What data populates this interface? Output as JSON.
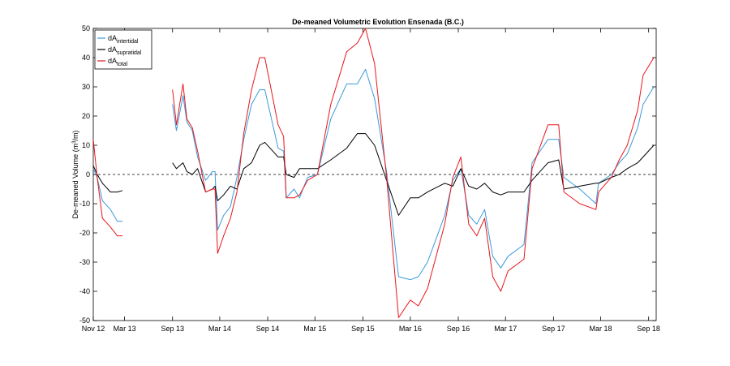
{
  "chart_data": {
    "type": "line",
    "title": "De-meaned Volumetric Evolution Ensenada (B.C.)",
    "xlabel": "",
    "ylabel": "De-meaned Volume (m^3/m)",
    "xlim": [
      "2012-11-01",
      "2018-09-30"
    ],
    "ylim": [
      -50,
      50
    ],
    "yticks": [
      -50,
      -40,
      -30,
      -20,
      -10,
      0,
      10,
      20,
      30,
      40,
      50
    ],
    "xticks": [
      {
        "label": "Nov 12",
        "date": "2012-11-01"
      },
      {
        "label": "Mar 13",
        "date": "2013-03-01"
      },
      {
        "label": "Sep 13",
        "date": "2013-09-01"
      },
      {
        "label": "Mar 14",
        "date": "2014-03-01"
      },
      {
        "label": "Sep 14",
        "date": "2014-09-01"
      },
      {
        "label": "Mar 15",
        "date": "2015-03-01"
      },
      {
        "label": "Sep 15",
        "date": "2015-09-01"
      },
      {
        "label": "Mar 16",
        "date": "2016-03-01"
      },
      {
        "label": "Sep 16",
        "date": "2016-09-01"
      },
      {
        "label": "Mar 17",
        "date": "2017-03-01"
      },
      {
        "label": "Sep 17",
        "date": "2017-09-01"
      },
      {
        "label": "Mar 18",
        "date": "2018-03-01"
      },
      {
        "label": "Sep 18",
        "date": "2018-09-01"
      }
    ],
    "zero_line": {
      "y": 0,
      "style": "dashed"
    },
    "legend": {
      "position": "top-left"
    },
    "grid": false,
    "series": [
      {
        "name": "dA",
        "name_subscript": "intertidal",
        "color": "#3A9AD9",
        "segments": [
          [
            [
              "2012-11-01",
              2
            ],
            [
              "2012-11-16",
              -1
            ],
            [
              "2012-12-06",
              -9
            ],
            [
              "2013-01-06",
              -12
            ],
            [
              "2013-02-01",
              -16
            ],
            [
              "2013-02-21",
              -16
            ]
          ],
          [
            [
              "2013-09-01",
              24
            ],
            [
              "2013-09-16",
              15
            ],
            [
              "2013-10-11",
              27
            ],
            [
              "2013-10-26",
              18
            ],
            [
              "2013-11-16",
              15
            ],
            [
              "2013-12-06",
              6
            ],
            [
              "2014-01-06",
              -2
            ],
            [
              "2014-02-01",
              1
            ],
            [
              "2014-02-11",
              1
            ],
            [
              "2014-02-21",
              -19
            ],
            [
              "2014-03-16",
              -14
            ],
            [
              "2014-04-11",
              -11
            ],
            [
              "2014-05-06",
              -1
            ],
            [
              "2014-06-01",
              12
            ],
            [
              "2014-07-01",
              24
            ],
            [
              "2014-08-01",
              29
            ],
            [
              "2014-08-21",
              29
            ],
            [
              "2014-10-11",
              9
            ],
            [
              "2014-11-01",
              8
            ],
            [
              "2014-11-11",
              -8
            ],
            [
              "2014-12-11",
              -5
            ],
            [
              "2015-01-01",
              -8
            ],
            [
              "2015-02-01",
              -1
            ],
            [
              "2015-03-11",
              0
            ],
            [
              "2015-05-01",
              19
            ],
            [
              "2015-07-01",
              31
            ],
            [
              "2015-08-11",
              31
            ],
            [
              "2015-09-11",
              36
            ],
            [
              "2015-10-16",
              26
            ],
            [
              "2015-12-01",
              1
            ],
            [
              "2016-01-16",
              -35
            ],
            [
              "2016-03-01",
              -36
            ],
            [
              "2016-04-01",
              -35
            ],
            [
              "2016-05-06",
              -30
            ],
            [
              "2016-07-11",
              -14
            ],
            [
              "2016-08-11",
              -2
            ],
            [
              "2016-09-11",
              2
            ],
            [
              "2016-10-11",
              -14
            ],
            [
              "2016-11-11",
              -17
            ],
            [
              "2016-12-11",
              -12
            ],
            [
              "2017-01-11",
              -28
            ],
            [
              "2017-02-11",
              -32
            ],
            [
              "2017-03-11",
              -28
            ],
            [
              "2017-05-11",
              -24
            ],
            [
              "2017-06-11",
              4
            ],
            [
              "2017-08-11",
              12
            ],
            [
              "2017-09-21",
              12
            ],
            [
              "2017-10-11",
              -1
            ],
            [
              "2017-12-11",
              -5
            ],
            [
              "2018-02-11",
              -10
            ],
            [
              "2018-02-21",
              -3
            ],
            [
              "2018-04-11",
              0
            ],
            [
              "2018-05-11",
              4
            ],
            [
              "2018-06-11",
              7
            ],
            [
              "2018-07-21",
              16
            ],
            [
              "2018-08-11",
              24
            ],
            [
              "2018-09-21",
              30
            ]
          ]
        ]
      },
      {
        "name": "dA",
        "name_subscript": "supratidal",
        "color": "#000000",
        "segments": [
          [
            [
              "2012-11-01",
              3
            ],
            [
              "2012-11-16",
              0
            ],
            [
              "2012-12-06",
              -3
            ],
            [
              "2013-01-06",
              -6
            ],
            [
              "2013-02-01",
              -6
            ],
            [
              "2013-02-21",
              -5.5
            ]
          ],
          [
            [
              "2013-09-01",
              4
            ],
            [
              "2013-09-16",
              2
            ],
            [
              "2013-10-11",
              4
            ],
            [
              "2013-10-26",
              1
            ],
            [
              "2013-11-16",
              0
            ],
            [
              "2013-12-06",
              2
            ],
            [
              "2014-01-06",
              -6
            ],
            [
              "2014-02-01",
              -5
            ],
            [
              "2014-02-11",
              -4
            ],
            [
              "2014-02-21",
              -9
            ],
            [
              "2014-03-16",
              -7
            ],
            [
              "2014-04-11",
              -4
            ],
            [
              "2014-05-06",
              -5
            ],
            [
              "2014-06-01",
              2
            ],
            [
              "2014-07-01",
              4
            ],
            [
              "2014-08-01",
              10
            ],
            [
              "2014-08-21",
              11
            ],
            [
              "2014-10-11",
              6
            ],
            [
              "2014-11-01",
              6
            ],
            [
              "2014-11-11",
              0
            ],
            [
              "2014-12-11",
              -1
            ],
            [
              "2015-01-01",
              2
            ],
            [
              "2015-02-01",
              2
            ],
            [
              "2015-03-11",
              2
            ],
            [
              "2015-05-01",
              5
            ],
            [
              "2015-07-01",
              9
            ],
            [
              "2015-08-11",
              14
            ],
            [
              "2015-09-11",
              14
            ],
            [
              "2015-10-16",
              10
            ],
            [
              "2015-12-01",
              -2
            ],
            [
              "2016-01-16",
              -14
            ],
            [
              "2016-03-01",
              -8
            ],
            [
              "2016-04-01",
              -8
            ],
            [
              "2016-05-06",
              -6
            ],
            [
              "2016-07-11",
              -3
            ],
            [
              "2016-08-11",
              -4
            ],
            [
              "2016-09-11",
              2
            ],
            [
              "2016-10-11",
              -4
            ],
            [
              "2016-11-11",
              -5
            ],
            [
              "2016-12-11",
              -3
            ],
            [
              "2017-01-11",
              -6
            ],
            [
              "2017-02-11",
              -7
            ],
            [
              "2017-03-11",
              -6
            ],
            [
              "2017-05-11",
              -6
            ],
            [
              "2017-06-11",
              -2
            ],
            [
              "2017-08-11",
              4
            ],
            [
              "2017-09-21",
              5
            ],
            [
              "2017-10-11",
              -5
            ],
            [
              "2017-12-11",
              -4
            ],
            [
              "2018-02-11",
              -3
            ],
            [
              "2018-02-21",
              -3
            ],
            [
              "2018-04-11",
              -1
            ],
            [
              "2018-05-11",
              0
            ],
            [
              "2018-06-11",
              2
            ],
            [
              "2018-07-21",
              4
            ],
            [
              "2018-08-11",
              6
            ],
            [
              "2018-09-21",
              10
            ]
          ]
        ]
      },
      {
        "name": "dA",
        "name_subscript": "total",
        "color": "#E8161C",
        "segments": [
          [
            [
              "2012-11-01",
              12
            ],
            [
              "2012-11-16",
              -1
            ],
            [
              "2012-12-06",
              -15
            ],
            [
              "2013-01-06",
              -18
            ],
            [
              "2013-02-01",
              -21
            ],
            [
              "2013-02-21",
              -21
            ]
          ],
          [
            [
              "2013-09-01",
              29
            ],
            [
              "2013-09-16",
              17
            ],
            [
              "2013-10-11",
              31
            ],
            [
              "2013-10-26",
              19
            ],
            [
              "2013-11-16",
              16
            ],
            [
              "2013-12-06",
              8
            ],
            [
              "2014-01-06",
              -6
            ],
            [
              "2014-02-01",
              -5
            ],
            [
              "2014-02-11",
              -5
            ],
            [
              "2014-02-21",
              -27
            ],
            [
              "2014-03-16",
              -21
            ],
            [
              "2014-04-11",
              -15
            ],
            [
              "2014-05-06",
              -6
            ],
            [
              "2014-06-01",
              14
            ],
            [
              "2014-07-01",
              29
            ],
            [
              "2014-08-01",
              40
            ],
            [
              "2014-08-21",
              40
            ],
            [
              "2014-10-11",
              17
            ],
            [
              "2014-11-01",
              13
            ],
            [
              "2014-11-11",
              -8
            ],
            [
              "2014-12-11",
              -8
            ],
            [
              "2015-01-01",
              -7
            ],
            [
              "2015-02-01",
              -2
            ],
            [
              "2015-03-11",
              0
            ],
            [
              "2015-05-01",
              24
            ],
            [
              "2015-07-01",
              42
            ],
            [
              "2015-08-11",
              45
            ],
            [
              "2015-09-11",
              50
            ],
            [
              "2015-10-16",
              38
            ],
            [
              "2015-12-01",
              -1
            ],
            [
              "2016-01-16",
              -49
            ],
            [
              "2016-03-01",
              -43
            ],
            [
              "2016-04-01",
              -45
            ],
            [
              "2016-05-06",
              -39
            ],
            [
              "2016-07-11",
              -17
            ],
            [
              "2016-08-11",
              -1
            ],
            [
              "2016-09-11",
              6
            ],
            [
              "2016-10-11",
              -17
            ],
            [
              "2016-11-11",
              -21
            ],
            [
              "2016-12-11",
              -15
            ],
            [
              "2017-01-11",
              -35
            ],
            [
              "2017-02-11",
              -40
            ],
            [
              "2017-03-11",
              -33
            ],
            [
              "2017-05-11",
              -29
            ],
            [
              "2017-06-11",
              2
            ],
            [
              "2017-08-11",
              17
            ],
            [
              "2017-09-21",
              17
            ],
            [
              "2017-10-11",
              -6
            ],
            [
              "2017-12-11",
              -10
            ],
            [
              "2018-02-11",
              -12
            ],
            [
              "2018-02-21",
              -6
            ],
            [
              "2018-04-11",
              -1
            ],
            [
              "2018-05-11",
              5
            ],
            [
              "2018-06-11",
              10
            ],
            [
              "2018-07-21",
              22
            ],
            [
              "2018-08-11",
              34
            ],
            [
              "2018-09-21",
              40
            ]
          ]
        ]
      }
    ]
  }
}
